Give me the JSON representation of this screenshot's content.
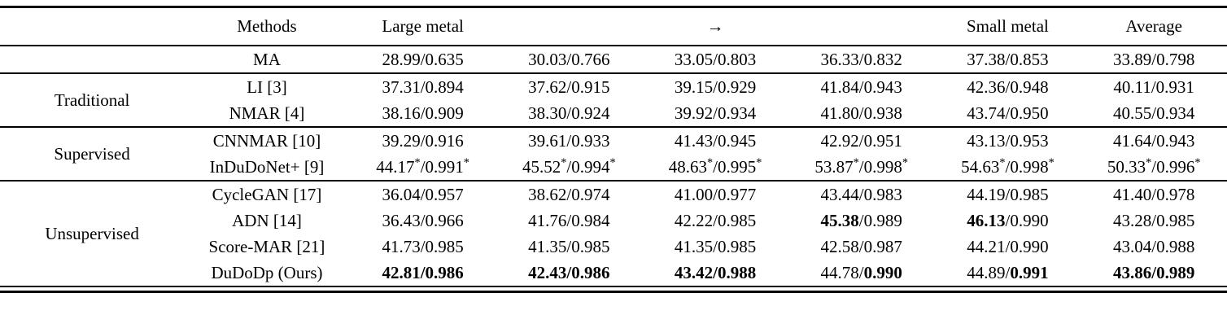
{
  "colors": {
    "background": "#ffffff",
    "text": "#000000",
    "rule": "#000000"
  },
  "table": {
    "header": {
      "group": "",
      "methods": "Methods",
      "cols": [
        "Large metal",
        "",
        "→",
        "",
        "Small metal",
        "Average"
      ]
    },
    "sections": [
      {
        "group": "",
        "rows": [
          {
            "method": "MA",
            "cells": [
              {
                "psnr": "28.99",
                "ssim": "0.635"
              },
              {
                "psnr": "30.03",
                "ssim": "0.766"
              },
              {
                "psnr": "33.05",
                "ssim": "0.803"
              },
              {
                "psnr": "36.33",
                "ssim": "0.832"
              },
              {
                "psnr": "37.38",
                "ssim": "0.853"
              },
              {
                "psnr": "33.89",
                "ssim": "0.798"
              }
            ]
          }
        ]
      },
      {
        "group": "Traditional",
        "rows": [
          {
            "method": "LI [3]",
            "cells": [
              {
                "psnr": "37.31",
                "ssim": "0.894"
              },
              {
                "psnr": "37.62",
                "ssim": "0.915"
              },
              {
                "psnr": "39.15",
                "ssim": "0.929"
              },
              {
                "psnr": "41.84",
                "ssim": "0.943"
              },
              {
                "psnr": "42.36",
                "ssim": "0.948"
              },
              {
                "psnr": "40.11",
                "ssim": "0.931"
              }
            ]
          },
          {
            "method": "NMAR [4]",
            "cells": [
              {
                "psnr": "38.16",
                "ssim": "0.909"
              },
              {
                "psnr": "38.30",
                "ssim": "0.924"
              },
              {
                "psnr": "39.92",
                "ssim": "0.934"
              },
              {
                "psnr": "41.80",
                "ssim": "0.938"
              },
              {
                "psnr": "43.74",
                "ssim": "0.950"
              },
              {
                "psnr": "40.55",
                "ssim": "0.934"
              }
            ]
          }
        ]
      },
      {
        "group": "Supervised",
        "rows": [
          {
            "method": "CNNMAR [10]",
            "cells": [
              {
                "psnr": "39.29",
                "ssim": "0.916"
              },
              {
                "psnr": "39.61",
                "ssim": "0.933"
              },
              {
                "psnr": "41.43",
                "ssim": "0.945"
              },
              {
                "psnr": "42.92",
                "ssim": "0.951"
              },
              {
                "psnr": "43.13",
                "ssim": "0.953"
              },
              {
                "psnr": "41.64",
                "ssim": "0.943"
              }
            ]
          },
          {
            "method": "InDuDoNet+ [9]",
            "cells": [
              {
                "psnr": "44.17",
                "ssim": "0.991",
                "star": true
              },
              {
                "psnr": "45.52",
                "ssim": "0.994",
                "star": true
              },
              {
                "psnr": "48.63",
                "ssim": "0.995",
                "star": true
              },
              {
                "psnr": "53.87",
                "ssim": "0.998",
                "star": true
              },
              {
                "psnr": "54.63",
                "ssim": "0.998",
                "star": true
              },
              {
                "psnr": "50.33",
                "ssim": "0.996",
                "star": true
              }
            ]
          }
        ]
      },
      {
        "group": "Unsupervised",
        "rows": [
          {
            "method": "CycleGAN [17]",
            "cells": [
              {
                "psnr": "36.04",
                "ssim": "0.957"
              },
              {
                "psnr": "38.62",
                "ssim": "0.974"
              },
              {
                "psnr": "41.00",
                "ssim": "0.977"
              },
              {
                "psnr": "43.44",
                "ssim": "0.983"
              },
              {
                "psnr": "44.19",
                "ssim": "0.985"
              },
              {
                "psnr": "41.40",
                "ssim": "0.978"
              }
            ]
          },
          {
            "method": "ADN [14]",
            "cells": [
              {
                "psnr": "36.43",
                "ssim": "0.966"
              },
              {
                "psnr": "41.76",
                "ssim": "0.984"
              },
              {
                "psnr": "42.22",
                "ssim": "0.985"
              },
              {
                "psnr": "45.38",
                "ssim": "0.989",
                "psnr_bold": true
              },
              {
                "psnr": "46.13",
                "ssim": "0.990",
                "psnr_bold": true
              },
              {
                "psnr": "43.28",
                "ssim": "0.985"
              }
            ]
          },
          {
            "method": "Score-MAR [21]",
            "cells": [
              {
                "psnr": "41.73",
                "ssim": "0.985"
              },
              {
                "psnr": "41.35",
                "ssim": "0.985"
              },
              {
                "psnr": "41.35",
                "ssim": "0.985"
              },
              {
                "psnr": "42.58",
                "ssim": "0.987"
              },
              {
                "psnr": "44.21",
                "ssim": "0.990"
              },
              {
                "psnr": "43.04",
                "ssim": "0.988"
              }
            ]
          },
          {
            "method": "DuDoDp (Ours)",
            "cells": [
              {
                "psnr": "42.81",
                "ssim": "0.986",
                "psnr_bold": true,
                "ssim_bold": true
              },
              {
                "psnr": "42.43",
                "ssim": "0.986",
                "psnr_bold": true,
                "ssim_bold": true
              },
              {
                "psnr": "43.42",
                "ssim": "0.988",
                "psnr_bold": true,
                "ssim_bold": true
              },
              {
                "psnr": "44.78",
                "ssim": "0.990",
                "ssim_bold": true
              },
              {
                "psnr": "44.89",
                "ssim": "0.991",
                "ssim_bold": true
              },
              {
                "psnr": "43.86",
                "ssim": "0.989",
                "psnr_bold": true,
                "ssim_bold": true
              }
            ]
          }
        ]
      }
    ]
  }
}
